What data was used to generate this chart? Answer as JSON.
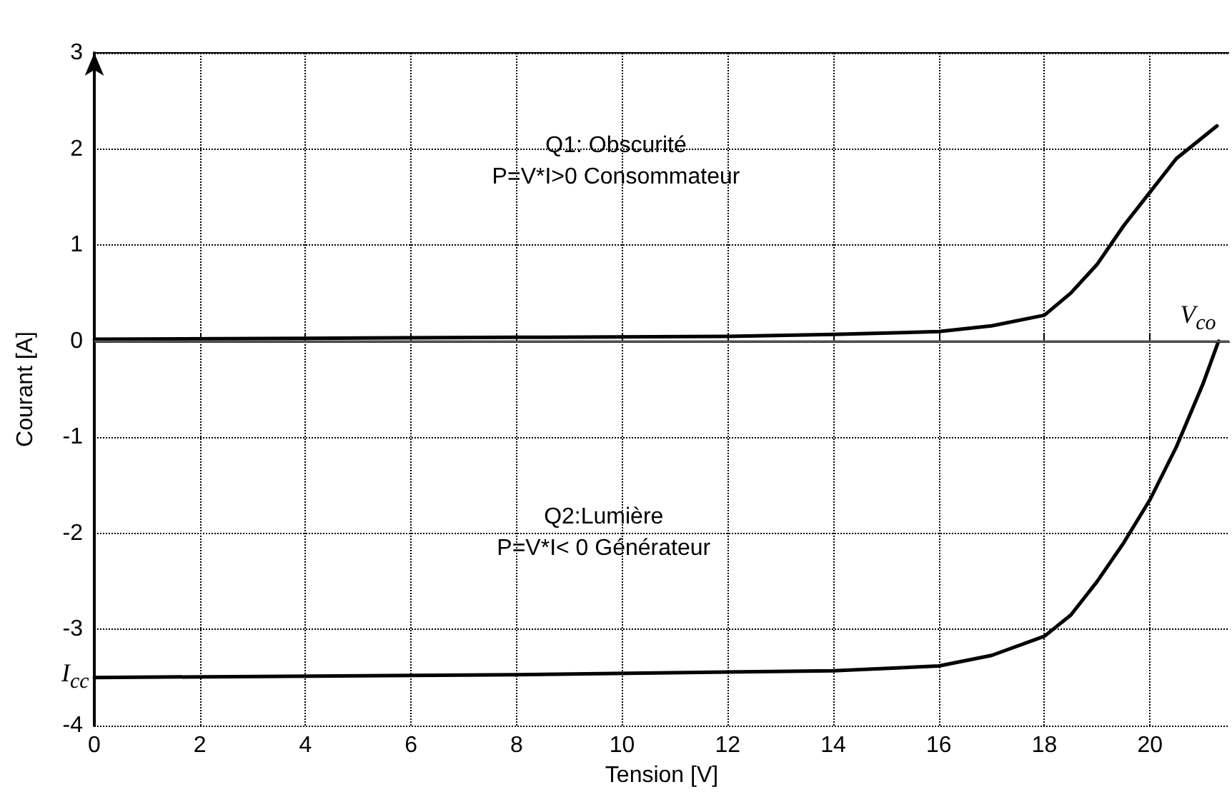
{
  "chart_data": {
    "type": "line",
    "xlabel": "Tension [V]",
    "ylabel": "Courant [A]",
    "xlim": [
      0,
      21.5
    ],
    "xticks": [
      0,
      2,
      4,
      6,
      8,
      10,
      12,
      14,
      16,
      18,
      20
    ],
    "ylim": [
      -4,
      3
    ],
    "yticks": [
      -4,
      -3,
      -2,
      -1,
      0,
      1,
      2,
      3
    ],
    "grid": true,
    "marker": "none",
    "line_style": "solid",
    "ref_lines": [
      {
        "axis": "y",
        "value": 0,
        "color": "#555555"
      }
    ],
    "series": [
      {
        "color": "#000000",
        "x": [
          0,
          4,
          8,
          12,
          14,
          16,
          17,
          18,
          18.5,
          19,
          19.5,
          20,
          20.5,
          21.27
        ],
        "values": [
          0.02,
          0.03,
          0.04,
          0.05,
          0.07,
          0.1,
          0.16,
          0.27,
          0.5,
          0.8,
          1.2,
          1.55,
          1.9,
          2.24
        ]
      },
      {
        "color": "#000000",
        "x": [
          0,
          8,
          14,
          16,
          17,
          18,
          18.5,
          19,
          19.5,
          20,
          20.5,
          21,
          21.3
        ],
        "values": [
          -3.5,
          -3.47,
          -3.43,
          -3.38,
          -3.27,
          -3.07,
          -2.85,
          -2.5,
          -2.1,
          -1.65,
          -1.1,
          -0.45,
          0
        ]
      }
    ],
    "annotations": [
      "Q1: Obscurité\nP=V*I>0 Consommateur",
      "Q2:Lumière\nP=V*I< 0 Générateur",
      {
        "text": "V$_{co}$",
        "x": 21.3,
        "y": 0
      },
      {
        "text": "I$_{cc}$",
        "x": 0,
        "y": -3.5
      }
    ]
  }
}
